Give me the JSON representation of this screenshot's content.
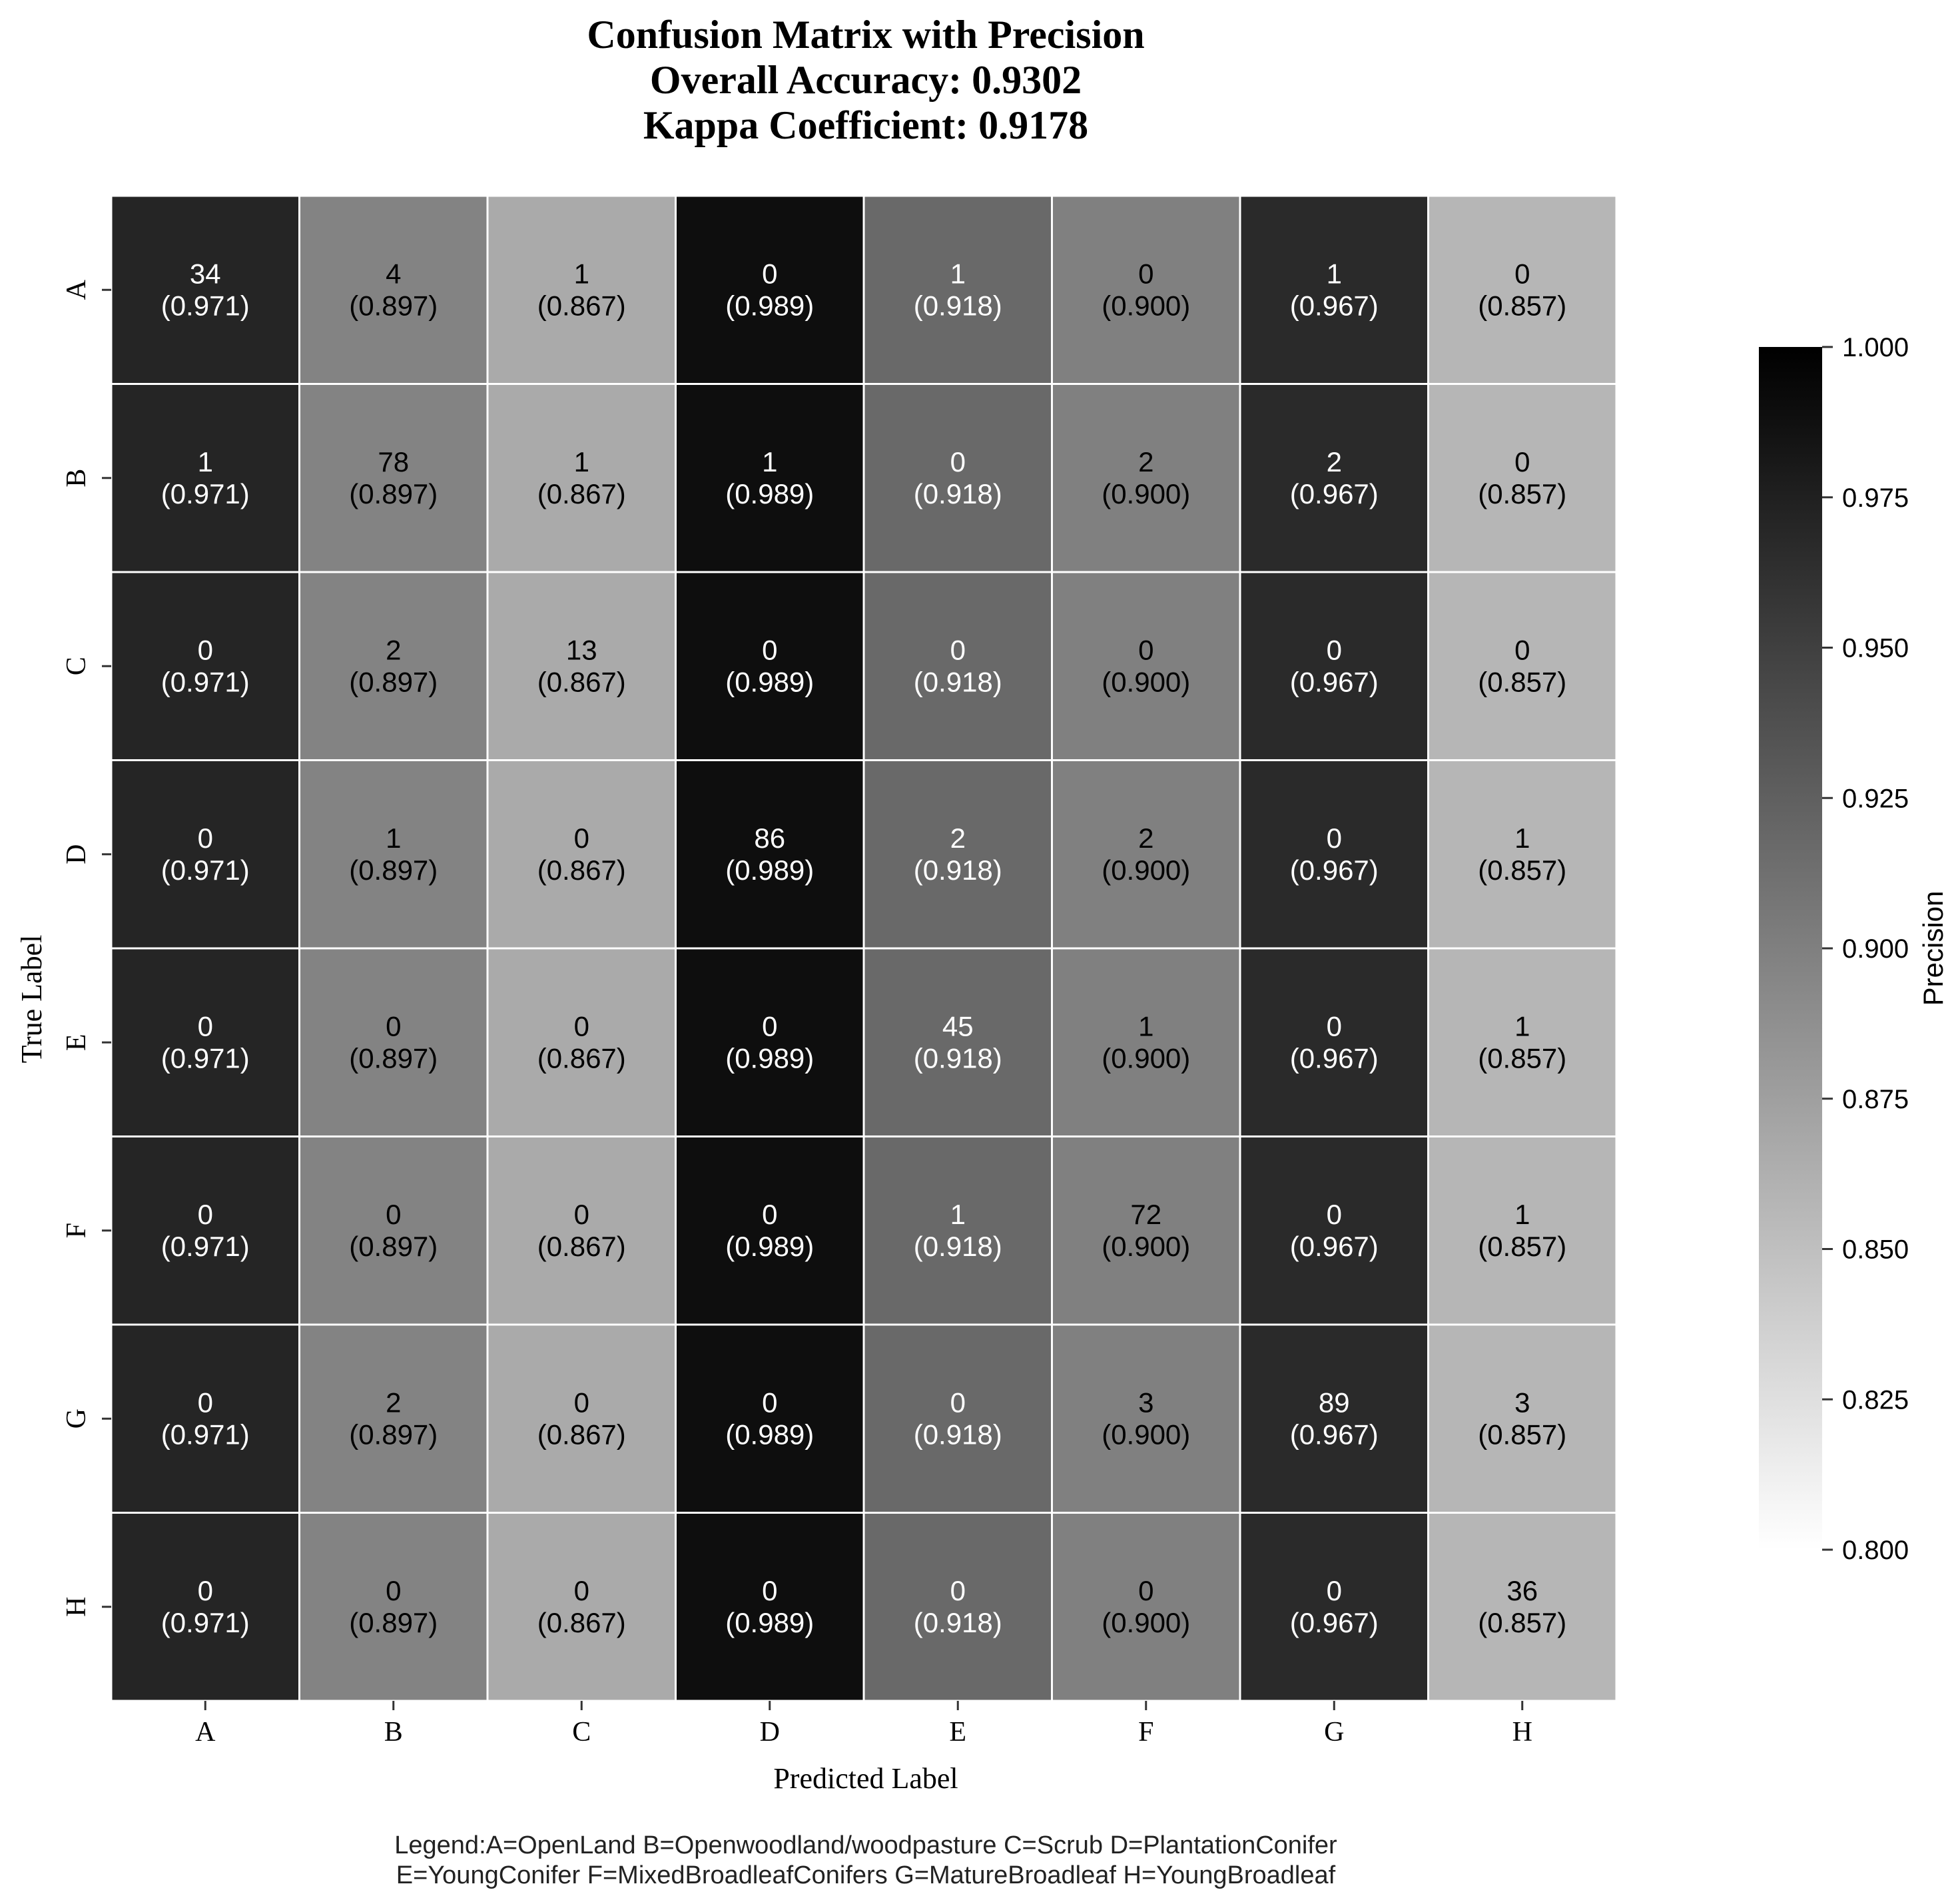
{
  "chart_data": {
    "type": "heatmap",
    "title_lines": [
      "Confusion Matrix with Precision",
      "Overall Accuracy: 0.9302",
      "Kappa Coefficient: 0.9178"
    ],
    "xlabel": "Predicted Label",
    "ylabel": "True Label",
    "x_categories": [
      "A",
      "B",
      "C",
      "D",
      "E",
      "F",
      "G",
      "H"
    ],
    "y_categories": [
      "A",
      "B",
      "C",
      "D",
      "E",
      "F",
      "G",
      "H"
    ],
    "counts": [
      [
        34,
        4,
        1,
        0,
        1,
        0,
        1,
        0
      ],
      [
        1,
        78,
        1,
        1,
        0,
        2,
        2,
        0
      ],
      [
        0,
        2,
        13,
        0,
        0,
        0,
        0,
        0
      ],
      [
        0,
        1,
        0,
        86,
        2,
        2,
        0,
        1
      ],
      [
        0,
        0,
        0,
        0,
        45,
        1,
        0,
        1
      ],
      [
        0,
        0,
        0,
        0,
        1,
        72,
        0,
        1
      ],
      [
        0,
        2,
        0,
        0,
        0,
        3,
        89,
        3
      ],
      [
        0,
        0,
        0,
        0,
        0,
        0,
        0,
        36
      ]
    ],
    "precision_labels": [
      "(0.971)",
      "(0.897)",
      "(0.867)",
      "(0.989)",
      "(0.918)",
      "(0.900)",
      "(0.967)",
      "(0.857)"
    ],
    "precision": [
      0.971,
      0.897,
      0.867,
      0.989,
      0.918,
      0.9,
      0.967,
      0.857
    ],
    "colorbar": {
      "label": "Precision",
      "range": [
        0.8,
        1.0
      ],
      "ticks": [
        "0.800",
        "0.825",
        "0.850",
        "0.875",
        "0.900",
        "0.925",
        "0.950",
        "0.975",
        "1.000"
      ],
      "colormap": "Greys"
    },
    "grid": false
  },
  "legend": {
    "line1": "Legend:A=OpenLand  B=Openwoodland/woodpasture  C=Scrub  D=PlantationConifer",
    "line2": "E=YoungConifer  F=MixedBroadleafConifers  G=MatureBroadleaf  H=YoungBroadleaf"
  }
}
